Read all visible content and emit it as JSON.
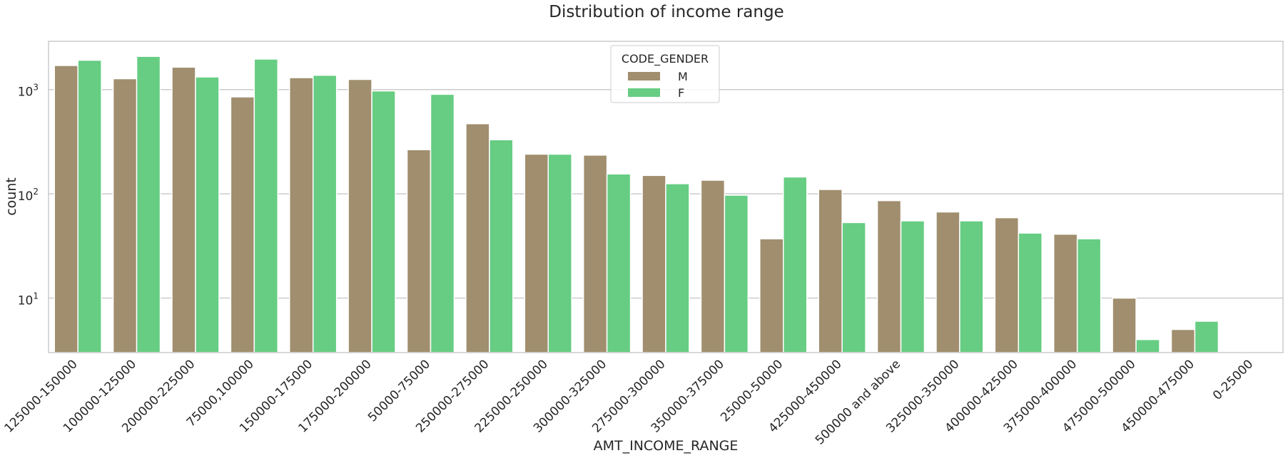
{
  "chart_data": {
    "type": "bar",
    "title": "Distribution of income range",
    "xlabel": "AMT_INCOME_RANGE",
    "ylabel": "count",
    "yscale": "log",
    "ylim": [
      3,
      2900
    ],
    "yticks": [
      {
        "value": 10,
        "base": "10",
        "exp": "1"
      },
      {
        "value": 100,
        "base": "10",
        "exp": "2"
      },
      {
        "value": 1000,
        "base": "10",
        "exp": "3"
      }
    ],
    "grid": true,
    "legend": {
      "title": "CODE_GENDER",
      "placement": "top-center"
    },
    "categories": [
      "125000-150000",
      "100000-125000",
      "200000-225000",
      "75000,100000",
      "150000-175000",
      "175000-200000",
      "50000-75000",
      "250000-275000",
      "225000-250000",
      "300000-325000",
      "275000-300000",
      "350000-375000",
      "25000-50000",
      "425000-450000",
      "500000 and above",
      "325000-350000",
      "400000-425000",
      "375000-400000",
      "475000-500000",
      "450000-475000",
      "0-25000"
    ],
    "series": [
      {
        "name": "M",
        "color": "#a08e6e",
        "values": [
          1700,
          1270,
          1640,
          850,
          1300,
          1250,
          265,
          470,
          240,
          235,
          150,
          135,
          37,
          110,
          86,
          67,
          59,
          41,
          10,
          5,
          0
        ]
      },
      {
        "name": "F",
        "color": "#66cd82",
        "values": [
          1910,
          2080,
          1320,
          1960,
          1370,
          970,
          900,
          330,
          240,
          155,
          125,
          97,
          145,
          53,
          55,
          55,
          42,
          37,
          4,
          6,
          0
        ]
      }
    ]
  }
}
